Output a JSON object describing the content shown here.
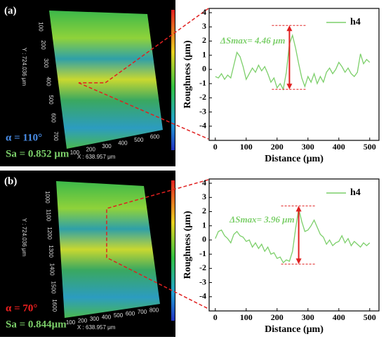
{
  "chart_data": [
    {
      "type": "line",
      "xlabel": "Distance (μm)",
      "ylabel": "Roughness (μm)",
      "x": [
        0,
        10,
        20,
        30,
        40,
        50,
        60,
        70,
        80,
        90,
        100,
        110,
        120,
        130,
        140,
        150,
        160,
        170,
        180,
        190,
        200,
        210,
        220,
        230,
        240,
        250,
        260,
        270,
        280,
        290,
        300,
        310,
        320,
        330,
        340,
        350,
        360,
        370,
        380,
        390,
        400,
        410,
        420,
        430,
        440,
        450,
        460,
        470,
        480,
        490,
        500
      ],
      "series": [
        {
          "name": "h4",
          "color": "#7ccf6a",
          "values": [
            -0.5,
            -0.6,
            -0.3,
            -0.7,
            -0.4,
            -0.6,
            0.3,
            1.2,
            0.9,
            0.2,
            -0.7,
            -0.3,
            0.1,
            -0.2,
            0.3,
            -0.1,
            0.2,
            -0.3,
            -0.9,
            -0.6,
            -1.3,
            -1.0,
            -1.4,
            -0.2,
            1.8,
            2.4,
            1.5,
            0.4,
            -0.6,
            -1.2,
            -0.5,
            -0.9,
            -0.3,
            -1.0,
            -0.5,
            -0.9,
            -0.2,
            0.1,
            -0.3,
            0.0,
            0.5,
            0.2,
            -0.2,
            0.1,
            -0.3,
            -0.5,
            -0.2,
            1.1,
            0.4,
            0.7,
            0.5
          ]
        }
      ],
      "annotation": {
        "text": "ΔSmax= 4.46 μm",
        "x": 240,
        "y_top": 3.1,
        "y_bottom": -1.4,
        "color": "#e02020"
      },
      "xlim": [
        -20,
        530
      ],
      "ylim": [
        -5,
        4.3
      ],
      "xticks": [
        0,
        100,
        200,
        300,
        400,
        500
      ],
      "yticks": [
        -4,
        -3,
        -2,
        -1,
        0,
        1,
        2,
        3,
        4
      ],
      "legend": "upper right"
    },
    {
      "type": "line",
      "xlabel": "Distance (μm)",
      "ylabel": "Roughness (μm)",
      "x": [
        0,
        10,
        20,
        30,
        40,
        50,
        60,
        70,
        80,
        90,
        100,
        110,
        120,
        130,
        140,
        150,
        160,
        170,
        180,
        190,
        200,
        210,
        220,
        230,
        240,
        250,
        260,
        270,
        280,
        290,
        300,
        310,
        320,
        330,
        340,
        350,
        360,
        370,
        380,
        390,
        400,
        410,
        420,
        430,
        440,
        450,
        460,
        470,
        480,
        490,
        500
      ],
      "series": [
        {
          "name": "h4",
          "color": "#7ccf6a",
          "values": [
            0.1,
            0.6,
            0.7,
            0.3,
            0.1,
            -0.2,
            0.4,
            0.6,
            0.3,
            0.2,
            -0.1,
            0.0,
            -0.5,
            -0.2,
            -0.6,
            -0.3,
            -0.8,
            -0.5,
            -1.0,
            -0.9,
            -1.3,
            -1.2,
            -1.6,
            -1.4,
            -1.5,
            -0.8,
            0.8,
            2.2,
            1.3,
            0.6,
            0.7,
            1.0,
            1.4,
            0.9,
            0.4,
            0.2,
            -0.3,
            0.0,
            -0.4,
            -0.2,
            -0.1,
            0.3,
            -0.2,
            0.1,
            -0.4,
            -0.1,
            -0.3,
            -0.5,
            -0.2,
            -0.4,
            -0.2
          ]
        }
      ],
      "annotation": {
        "text": "ΔSmax= 3.96 μm",
        "x": 270,
        "y_top": 2.4,
        "y_bottom": -1.7,
        "color": "#e02020"
      },
      "xlim": [
        -20,
        530
      ],
      "ylim": [
        -5,
        4.3
      ],
      "xticks": [
        0,
        100,
        200,
        300,
        400,
        500
      ],
      "yticks": [
        -4,
        -3,
        -2,
        -1,
        0,
        1,
        2,
        3,
        4
      ],
      "legend": "upper right"
    }
  ],
  "panels": [
    {
      "label": "(a)",
      "alpha": "α = 110°",
      "alpha_color": "#4a8ee8",
      "sa": "Sa = 0.852 μm",
      "x_dim": "X : 638.957 μm",
      "y_dim": "Y : 724.036 μm",
      "y_ticks": [
        "100",
        "200",
        "300",
        "400",
        "500",
        "600",
        "700"
      ],
      "x_ticks": [
        "100",
        "200",
        "300",
        "400",
        "500",
        "600"
      ]
    },
    {
      "label": "(b)",
      "alpha": "α = 70°",
      "alpha_color": "#f02020",
      "sa": "Sa = 0.844μm",
      "x_dim": "X : 638.957 μm",
      "y_dim": "Y : 724.036 μm",
      "y_ticks": [
        "1000",
        "1100",
        "1200",
        "1300",
        "1400",
        "1500",
        "1600"
      ],
      "x_ticks": [
        "100",
        "200",
        "300",
        "400",
        "500",
        "600",
        "700",
        "800"
      ]
    }
  ]
}
